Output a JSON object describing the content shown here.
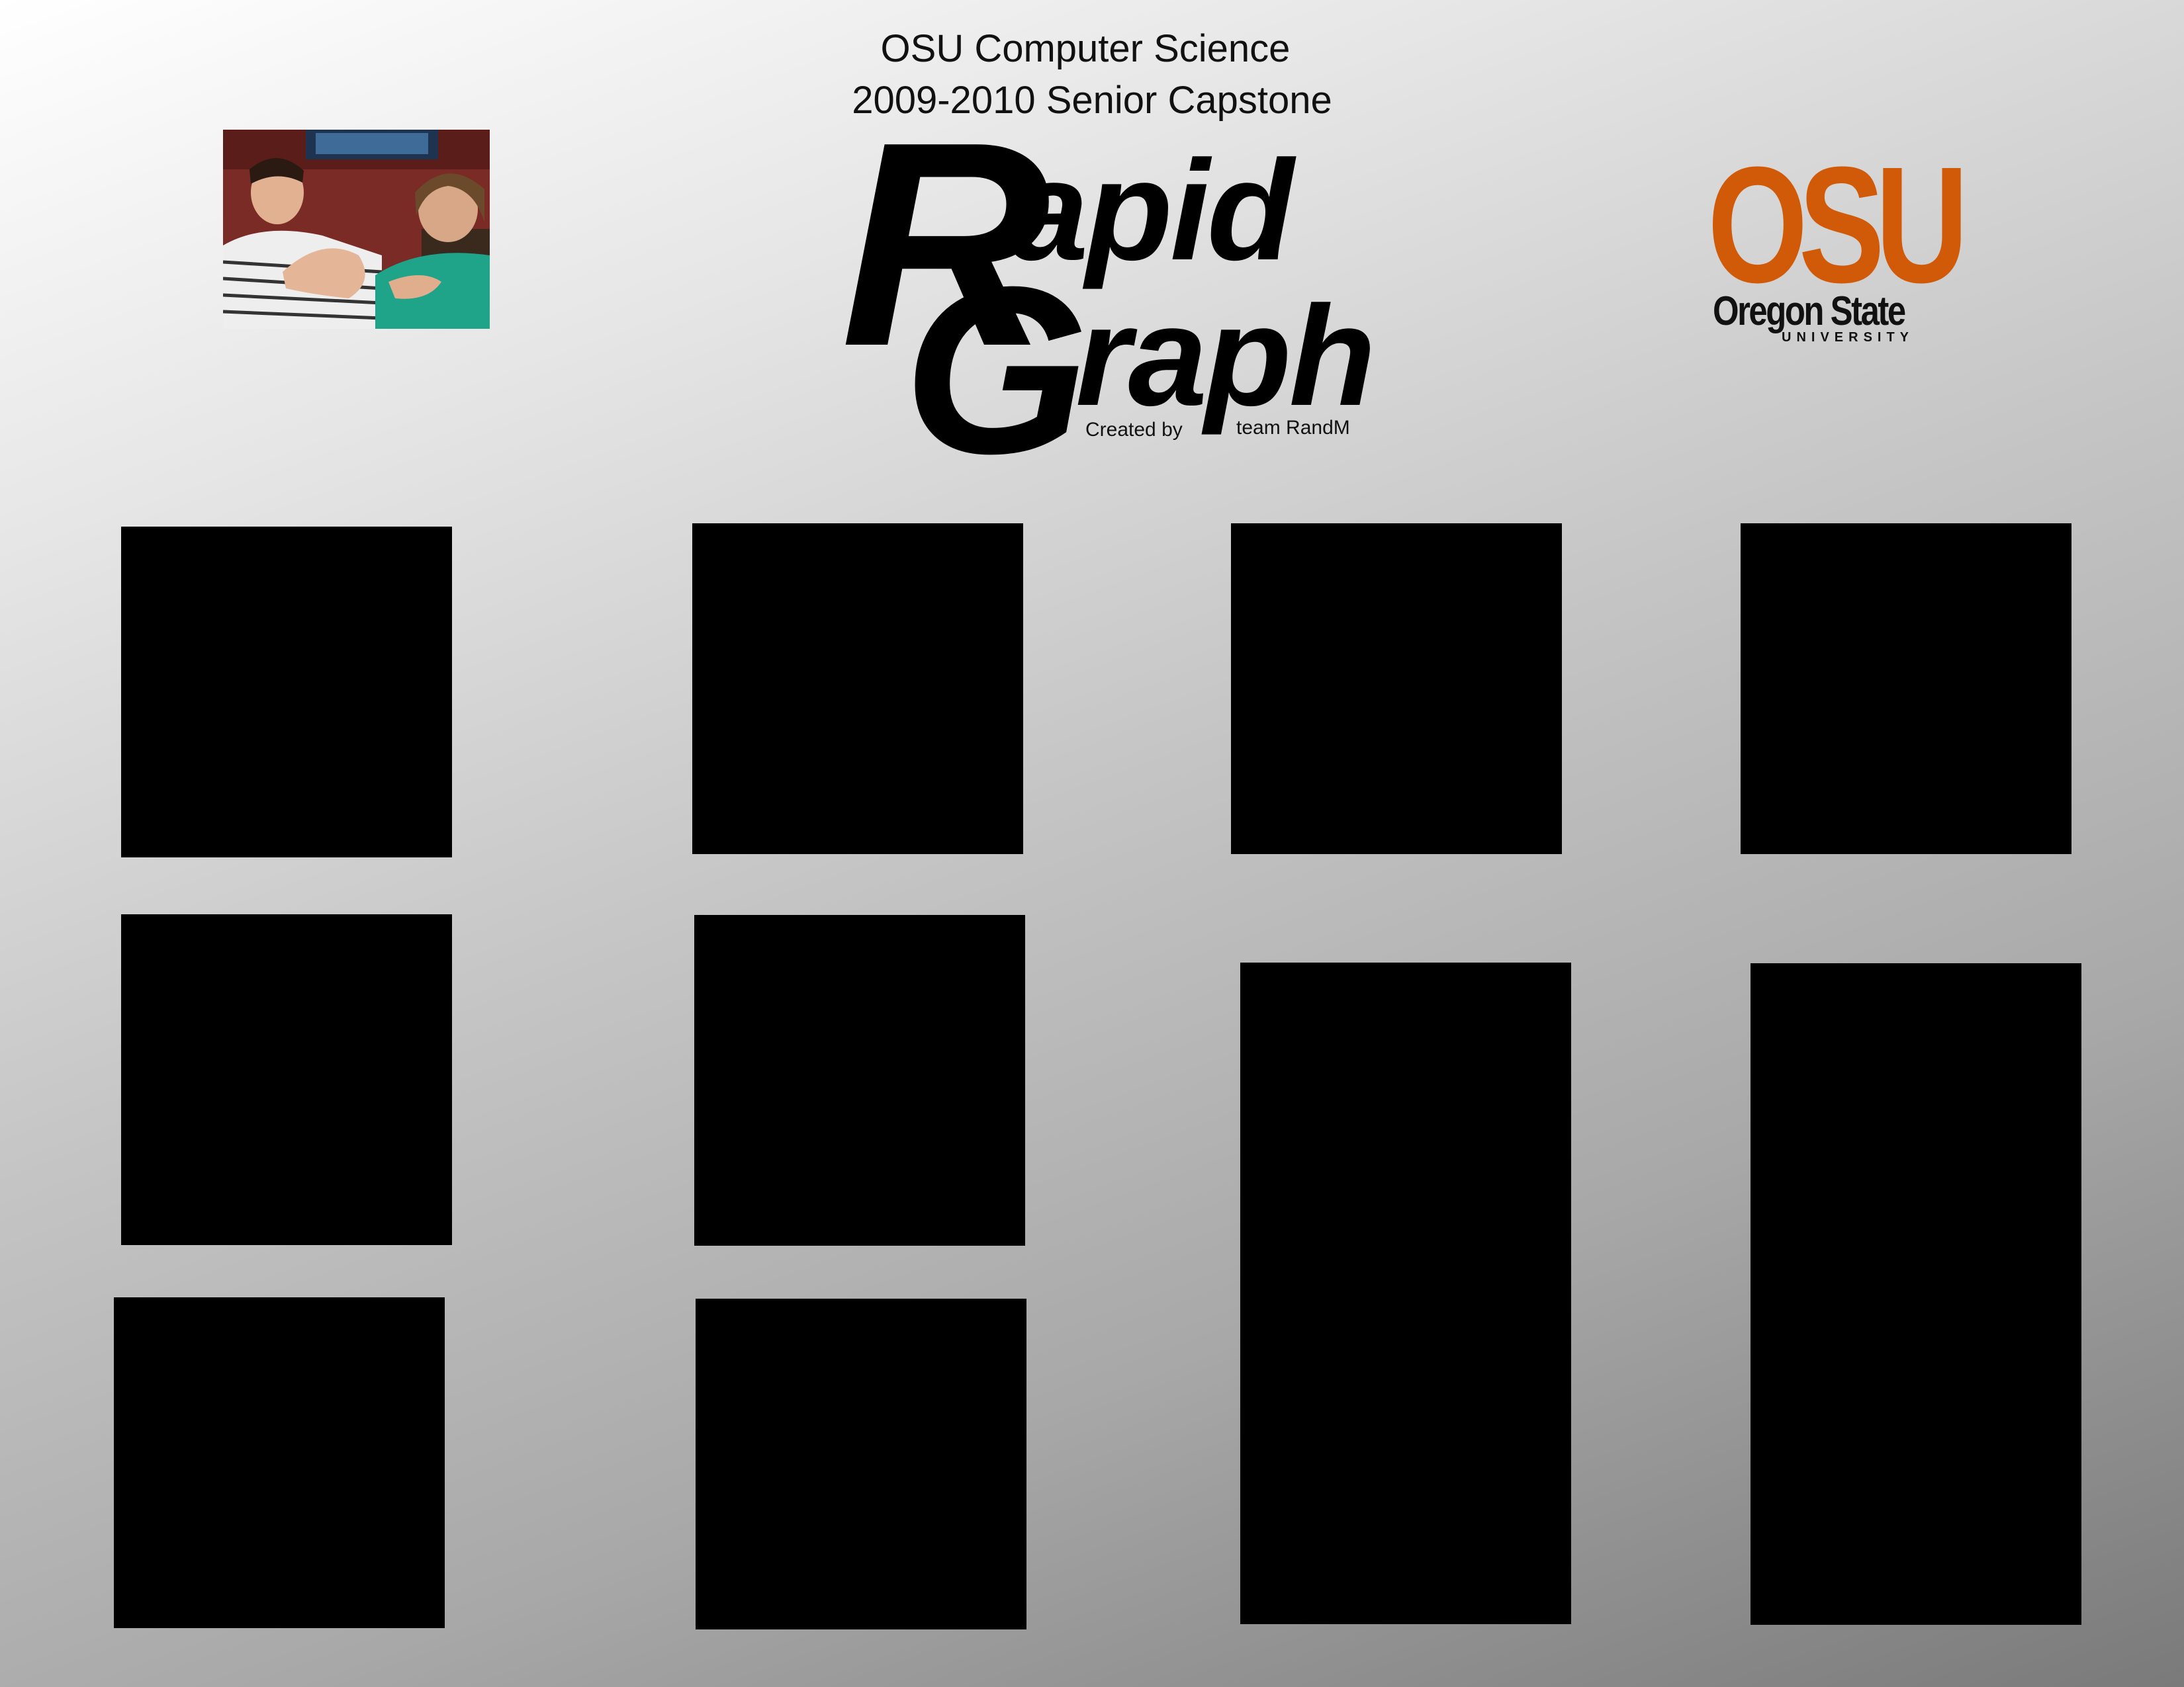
{
  "header": {
    "line1": "OSU Computer Science",
    "line2": "2009-2010 Senior Capstone"
  },
  "logo": {
    "r": "R",
    "apid": "apid",
    "g": "G",
    "raph": "raph",
    "created_by": "Created by",
    "team": "team RandM"
  },
  "osu": {
    "mark": "OSU",
    "name": "Oregon State",
    "university": "UNIVERSITY",
    "color": "#d05a07"
  },
  "photo": {
    "description_icon": "team-photo-icon"
  }
}
